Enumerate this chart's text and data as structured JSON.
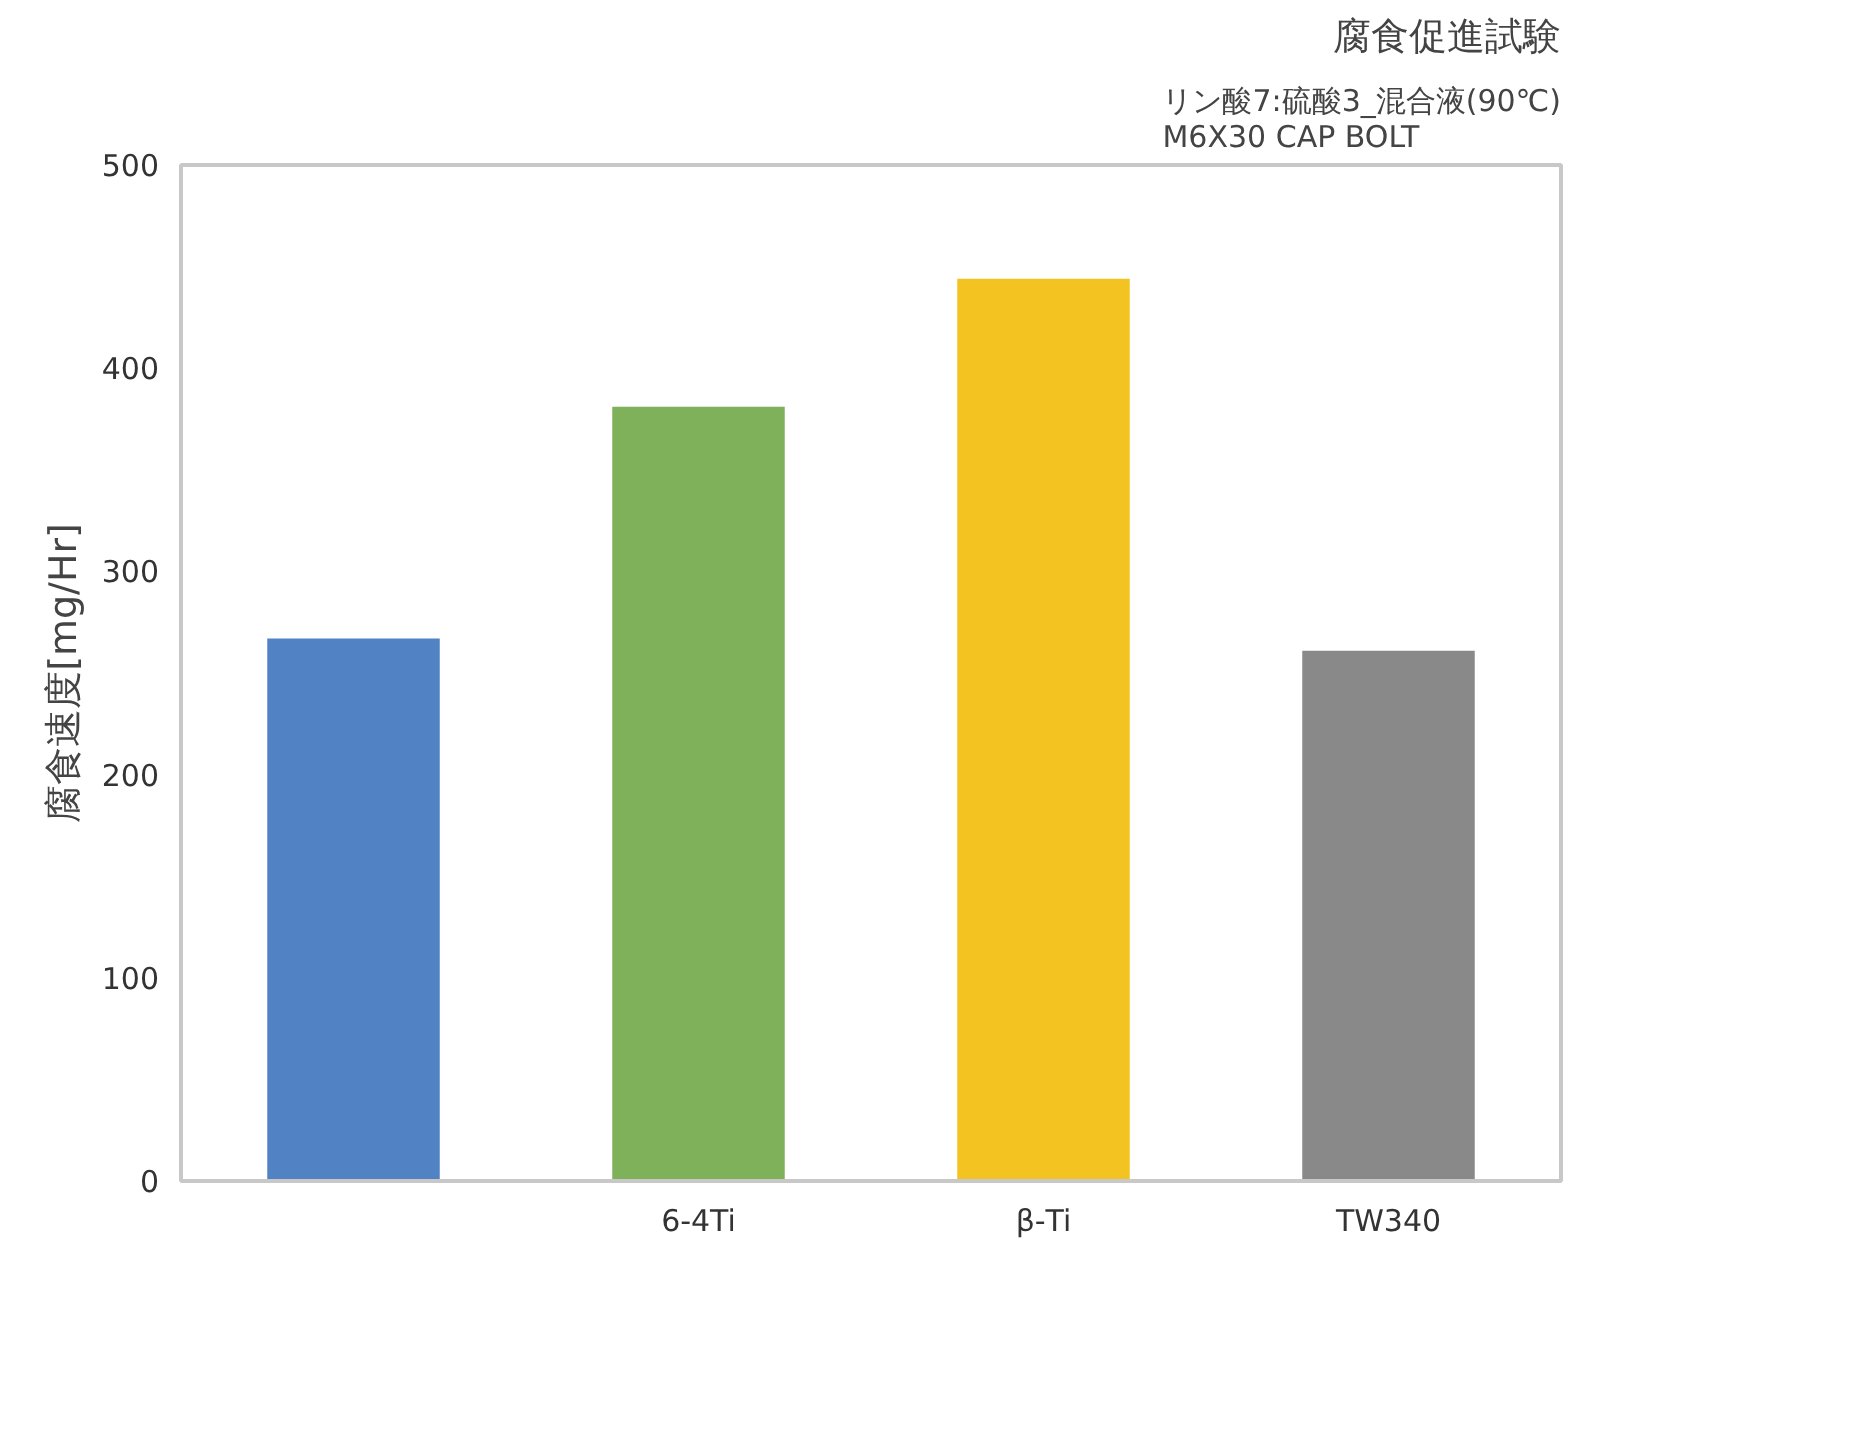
{
  "chart_data": {
    "type": "bar",
    "title": "腐食促進試験",
    "subtitle": "リン酸7:硫酸3_混合液(90℃)\nM6X30 CAP BOLT",
    "ylabel": "腐食速度[mg/Hr]",
    "categories": [
      null,
      "6-4Ti",
      "β-Ti",
      "TW340"
    ],
    "values": [
      267,
      381,
      444,
      261
    ],
    "colors": [
      "#5182c4",
      "#7fb05a",
      "#f3c321",
      "#898989"
    ],
    "ylim": [
      0,
      500
    ],
    "yticks": [
      0,
      100,
      200,
      300,
      400,
      500
    ],
    "grid": false
  }
}
